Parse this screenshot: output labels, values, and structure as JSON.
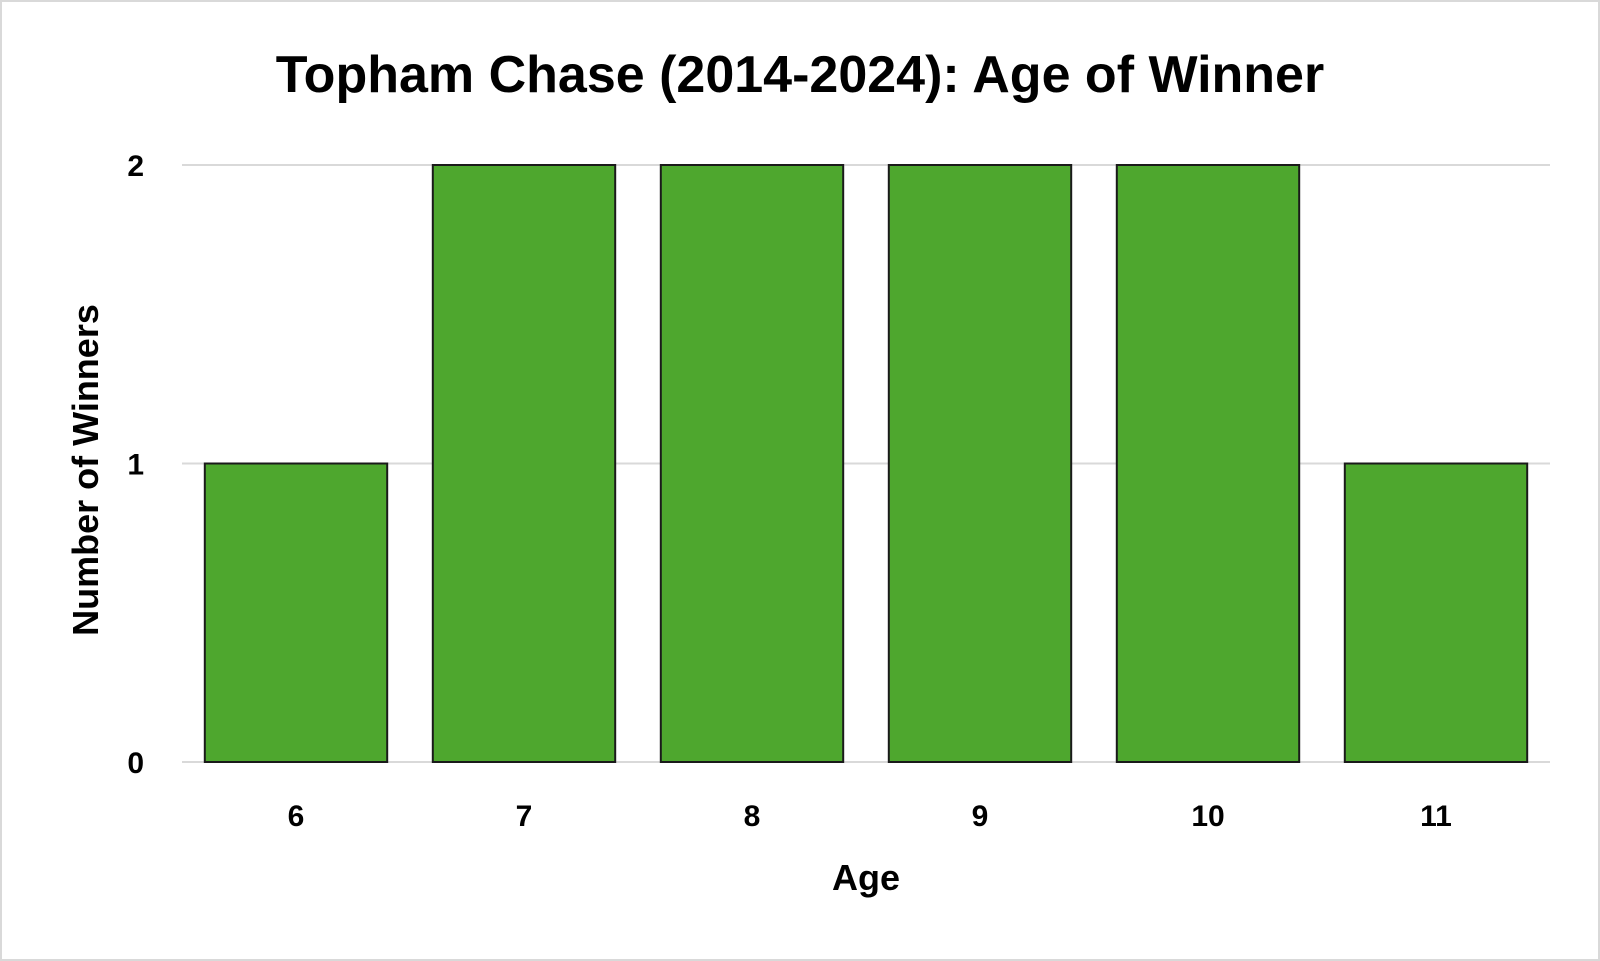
{
  "chart_data": {
    "type": "bar",
    "title": "Topham Chase (2014-2024): Age of Winner",
    "xlabel": "Age",
    "ylabel": "Number of Winners",
    "categories": [
      "6",
      "7",
      "8",
      "9",
      "10",
      "11"
    ],
    "values": [
      1,
      2,
      2,
      2,
      2,
      1
    ],
    "ylim": [
      0,
      2
    ],
    "yticks": [
      "0",
      "1",
      "2"
    ],
    "grid": true,
    "legend": "none",
    "colors": {
      "bar_fill": "#4ea72e",
      "bar_stroke": "#1a1a1a",
      "grid": "#d9d9d9",
      "border": "#d9d9d9"
    }
  }
}
